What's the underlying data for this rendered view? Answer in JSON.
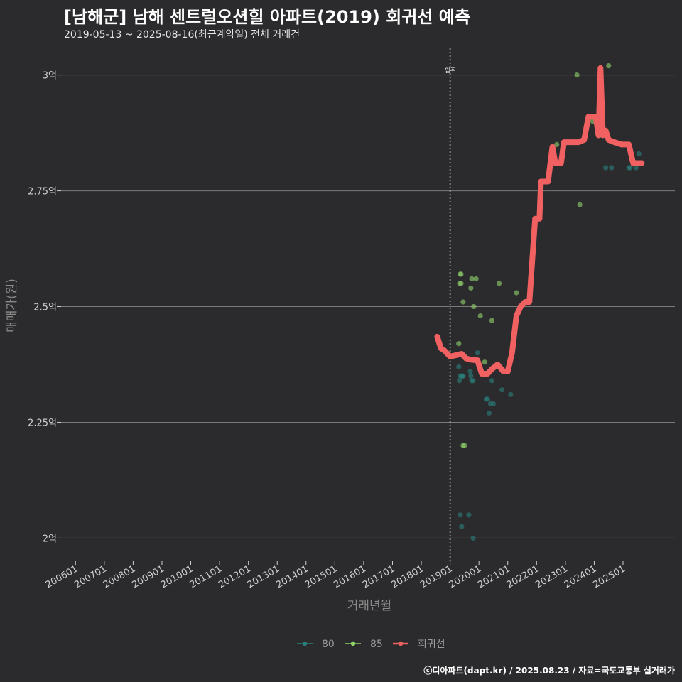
{
  "chart_data": {
    "type": "scatter+line",
    "title": "[남해군] 남해 센트럴오션힐 아파트(2019) 회귀선 예측",
    "subtitle": "2019-05-13 ~ 2025-08-16(최근계약일) 전체 거래건",
    "xlabel": "거래년월",
    "ylabel": "매매가(원)",
    "x_range": [
      2005.5,
      2026.8
    ],
    "ylim": [
      1.95,
      3.07
    ],
    "y_ticks": [
      {
        "value": 2.0,
        "label": "2억"
      },
      {
        "value": 2.25,
        "label": "2.25억"
      },
      {
        "value": 2.5,
        "label": "2.5억"
      },
      {
        "value": 2.75,
        "label": "2.75억"
      },
      {
        "value": 3.0,
        "label": "3억"
      }
    ],
    "x_ticks": [
      {
        "value": 2006.0,
        "label": "200601"
      },
      {
        "value": 2007.0,
        "label": "200701"
      },
      {
        "value": 2008.0,
        "label": "200801"
      },
      {
        "value": 2009.0,
        "label": "200901"
      },
      {
        "value": 2010.0,
        "label": "201001"
      },
      {
        "value": 2011.0,
        "label": "201101"
      },
      {
        "value": 2012.0,
        "label": "201201"
      },
      {
        "value": 2013.0,
        "label": "201301"
      },
      {
        "value": 2014.0,
        "label": "201401"
      },
      {
        "value": 2015.0,
        "label": "201501"
      },
      {
        "value": 2016.0,
        "label": "201601"
      },
      {
        "value": 2017.0,
        "label": "201701"
      },
      {
        "value": 2018.0,
        "label": "201801"
      },
      {
        "value": 2019.0,
        "label": "201901"
      },
      {
        "value": 2020.0,
        "label": "202001"
      },
      {
        "value": 2021.0,
        "label": "202101"
      },
      {
        "value": 2022.0,
        "label": "202201"
      },
      {
        "value": 2023.0,
        "label": "202301"
      },
      {
        "value": 2024.0,
        "label": "202401"
      },
      {
        "value": 2025.0,
        "label": "202501"
      }
    ],
    "annotation": {
      "x": 2019.0,
      "label": "입주"
    },
    "series": [
      {
        "name": "80",
        "color": "#2a7f7a",
        "kind": "scatter",
        "points": [
          [
            2019.3,
            2.37
          ],
          [
            2019.35,
            2.35
          ],
          [
            2019.32,
            2.34
          ],
          [
            2019.4,
            2.35
          ],
          [
            2019.42,
            2.35
          ],
          [
            2019.45,
            2.35
          ],
          [
            2019.7,
            2.36
          ],
          [
            2019.72,
            2.35
          ],
          [
            2019.75,
            2.34
          ],
          [
            2019.8,
            2.34
          ],
          [
            2019.95,
            2.4
          ],
          [
            2020.25,
            2.3
          ],
          [
            2020.3,
            2.3
          ],
          [
            2020.35,
            2.27
          ],
          [
            2020.4,
            2.29
          ],
          [
            2020.45,
            2.34
          ],
          [
            2020.5,
            2.29
          ],
          [
            2020.8,
            2.32
          ],
          [
            2021.1,
            2.31
          ],
          [
            2019.35,
            2.05
          ],
          [
            2019.65,
            2.05
          ],
          [
            2019.4,
            2.025
          ],
          [
            2019.8,
            2.0
          ],
          [
            2024.4,
            2.8
          ],
          [
            2024.6,
            2.8
          ],
          [
            2025.2,
            2.8
          ],
          [
            2025.25,
            2.8
          ],
          [
            2025.45,
            2.8
          ],
          [
            2025.55,
            2.83
          ]
        ]
      },
      {
        "name": "85",
        "color": "#8fd36a",
        "kind": "scatter",
        "points": [
          [
            2019.35,
            2.57
          ],
          [
            2019.38,
            2.57
          ],
          [
            2019.33,
            2.55
          ],
          [
            2019.38,
            2.55
          ],
          [
            2019.45,
            2.51
          ],
          [
            2019.3,
            2.42
          ],
          [
            2019.45,
            2.2
          ],
          [
            2019.5,
            2.2
          ],
          [
            2019.75,
            2.56
          ],
          [
            2019.9,
            2.56
          ],
          [
            2019.72,
            2.54
          ],
          [
            2020.05,
            2.48
          ],
          [
            2019.82,
            2.5
          ],
          [
            2020.45,
            2.47
          ],
          [
            2020.7,
            2.55
          ],
          [
            2021.3,
            2.53
          ],
          [
            2020.2,
            2.38
          ],
          [
            2020.6,
            2.37
          ],
          [
            2022.7,
            2.85
          ],
          [
            2023.4,
            3.0
          ],
          [
            2023.5,
            2.72
          ],
          [
            2024.5,
            3.02
          ],
          [
            2023.95,
            2.9
          ],
          [
            2024.2,
            2.87
          ]
        ]
      },
      {
        "name": "회귀선",
        "color": "#f26161",
        "kind": "line",
        "points": [
          [
            2018.55,
            2.435
          ],
          [
            2018.68,
            2.41
          ],
          [
            2018.8,
            2.405
          ],
          [
            2019.0,
            2.392
          ],
          [
            2019.2,
            2.395
          ],
          [
            2019.4,
            2.398
          ],
          [
            2019.55,
            2.388
          ],
          [
            2019.75,
            2.385
          ],
          [
            2019.95,
            2.384
          ],
          [
            2020.1,
            2.355
          ],
          [
            2020.3,
            2.355
          ],
          [
            2020.45,
            2.365
          ],
          [
            2020.65,
            2.375
          ],
          [
            2020.85,
            2.36
          ],
          [
            2021.0,
            2.36
          ],
          [
            2021.15,
            2.4
          ],
          [
            2021.3,
            2.48
          ],
          [
            2021.45,
            2.5
          ],
          [
            2021.6,
            2.51
          ],
          [
            2021.75,
            2.51
          ],
          [
            2021.85,
            2.6
          ],
          [
            2021.95,
            2.69
          ],
          [
            2022.1,
            2.69
          ],
          [
            2022.15,
            2.77
          ],
          [
            2022.4,
            2.77
          ],
          [
            2022.55,
            2.845
          ],
          [
            2022.65,
            2.81
          ],
          [
            2022.85,
            2.81
          ],
          [
            2022.95,
            2.855
          ],
          [
            2023.2,
            2.855
          ],
          [
            2023.45,
            2.855
          ],
          [
            2023.65,
            2.86
          ],
          [
            2023.8,
            2.91
          ],
          [
            2024.05,
            2.91
          ],
          [
            2024.15,
            2.87
          ],
          [
            2024.22,
            3.015
          ],
          [
            2024.3,
            2.87
          ],
          [
            2024.4,
            2.88
          ],
          [
            2024.5,
            2.86
          ],
          [
            2024.7,
            2.855
          ],
          [
            2024.95,
            2.85
          ],
          [
            2025.2,
            2.85
          ],
          [
            2025.35,
            2.81
          ],
          [
            2025.65,
            2.81
          ]
        ]
      }
    ]
  },
  "footer": "ⓒ디아파트(dapt.kr) / 2025.08.23 / 자료=국토교통부 실거래가"
}
